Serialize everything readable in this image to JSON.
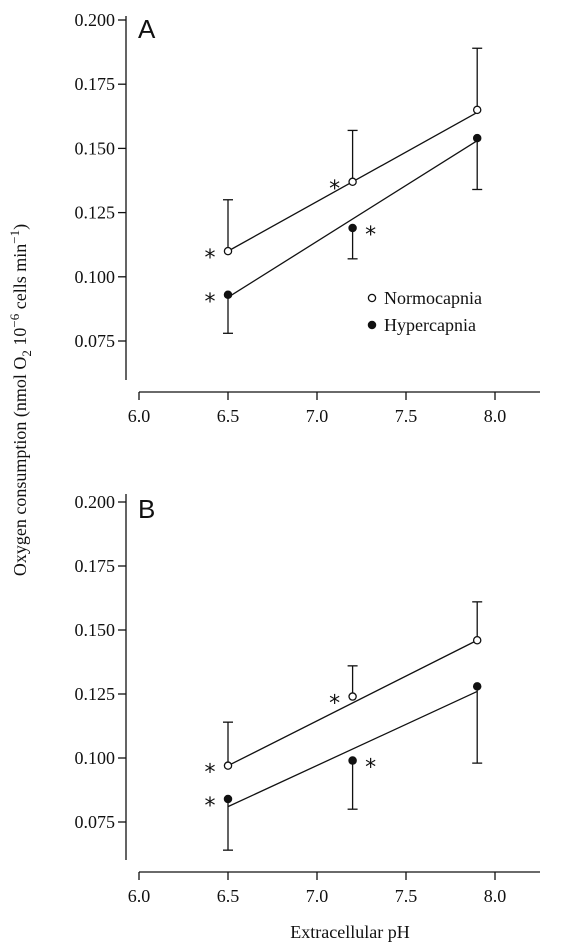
{
  "chart_data": [
    {
      "type": "scatter",
      "panel": "A",
      "xlabel": "Extracellular pH",
      "ylabel": "Oxygen consumption (nmol O2 10−6 cells min−1)",
      "xlim": [
        6.0,
        8.3
      ],
      "ylim": [
        0.05,
        0.2
      ],
      "x_ticks": [
        "6.0",
        "6.5",
        "7.0",
        "7.5",
        "8.0"
      ],
      "y_ticks": [
        "0.075",
        "0.100",
        "0.125",
        "0.150",
        "0.175",
        "0.200"
      ],
      "legend": "right-middle",
      "series": [
        {
          "name": "Normocapnia",
          "marker": "open-circle",
          "x": [
            6.5,
            7.2,
            7.9
          ],
          "y": [
            0.11,
            0.137,
            0.165
          ],
          "err_dir": "up",
          "err": [
            0.02,
            0.02,
            0.024
          ],
          "fit": [
            [
              6.5,
              0.11
            ],
            [
              7.9,
              0.164
            ]
          ],
          "sig": [
            true,
            true,
            false
          ],
          "sig_side": "left"
        },
        {
          "name": "Hypercapnia",
          "marker": "filled-circle",
          "x": [
            6.5,
            7.2,
            7.9
          ],
          "y": [
            0.093,
            0.119,
            0.154
          ],
          "err_dir": "down",
          "err": [
            0.015,
            0.012,
            0.02
          ],
          "fit": [
            [
              6.5,
              0.092
            ],
            [
              7.9,
              0.153
            ]
          ],
          "sig": [
            true,
            true,
            false
          ],
          "sig_side": "left-right"
        }
      ]
    },
    {
      "type": "scatter",
      "panel": "B",
      "xlabel": "Extracellular pH",
      "ylabel": "Oxygen consumption (nmol O2 10−6 cells min−1)",
      "xlim": [
        6.0,
        8.3
      ],
      "ylim": [
        0.05,
        0.2
      ],
      "x_ticks": [
        "6.0",
        "6.5",
        "7.0",
        "7.5",
        "8.0"
      ],
      "y_ticks": [
        "0.075",
        "0.100",
        "0.125",
        "0.150",
        "0.175",
        "0.200"
      ],
      "series": [
        {
          "name": "Normocapnia",
          "marker": "open-circle",
          "x": [
            6.5,
            7.2,
            7.9
          ],
          "y": [
            0.097,
            0.124,
            0.146
          ],
          "err_dir": "up",
          "err": [
            0.017,
            0.012,
            0.015
          ],
          "fit": [
            [
              6.5,
              0.097
            ],
            [
              7.9,
              0.146
            ]
          ],
          "sig": [
            true,
            true,
            false
          ],
          "sig_side": "left"
        },
        {
          "name": "Hypercapnia",
          "marker": "filled-circle",
          "x": [
            6.5,
            7.2,
            7.9
          ],
          "y": [
            0.084,
            0.099,
            0.128
          ],
          "err_dir": "down",
          "err": [
            0.02,
            0.019,
            0.03
          ],
          "fit": [
            [
              6.5,
              0.081
            ],
            [
              7.9,
              0.126
            ]
          ],
          "sig": [
            true,
            true,
            false
          ],
          "sig_side": "left-right"
        }
      ]
    }
  ],
  "labels": {
    "panel_a": "A",
    "panel_b": "B",
    "xlabel": "Extracellular pH",
    "ylabel_prefix": "Oxygen consumption (nmol O",
    "ylabel_sub": "2",
    "ylabel_mid": " 10",
    "ylabel_sup1": "−6",
    "ylabel_mid2": " cells min",
    "ylabel_sup2": "−1",
    "ylabel_suffix": ")",
    "legend_normocapnia": "Normocapnia",
    "legend_hypercapnia": "Hypercapnia",
    "significance_marker": "*"
  }
}
